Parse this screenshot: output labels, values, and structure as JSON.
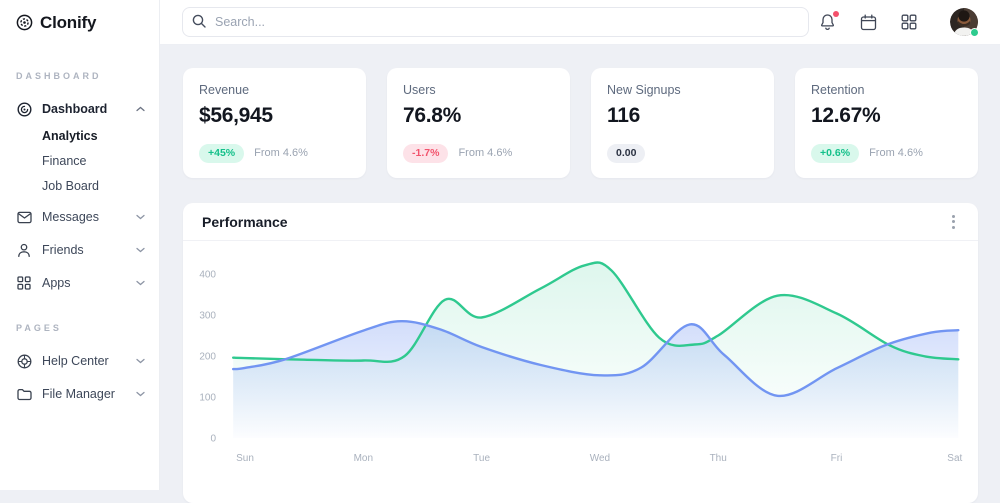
{
  "brand": {
    "name": "Clonify"
  },
  "topbar": {
    "search_placeholder": "Search...",
    "icons": [
      "bell-icon",
      "calendar-icon",
      "apps-grid-icon"
    ],
    "has_notification": true,
    "user_status": "online"
  },
  "sidebar": {
    "sections": [
      {
        "label": "DASHBOARD",
        "items": [
          {
            "label": "Dashboard",
            "icon": "dashboard-icon",
            "expanded": true,
            "children": [
              {
                "label": "Analytics",
                "active": true
              },
              {
                "label": "Finance",
                "active": false
              },
              {
                "label": "Job Board",
                "active": false
              }
            ]
          },
          {
            "label": "Messages",
            "icon": "messages-icon"
          },
          {
            "label": "Friends",
            "icon": "friends-icon"
          },
          {
            "label": "Apps",
            "icon": "apps-grid-icon"
          }
        ]
      },
      {
        "label": "PAGES",
        "items": [
          {
            "label": "Help Center",
            "icon": "help-icon"
          },
          {
            "label": "File Manager",
            "icon": "folder-icon"
          }
        ]
      }
    ]
  },
  "stats": {
    "cards": [
      {
        "title": "Revenue",
        "value": "$56,945",
        "badge": "+45%",
        "trend": "up",
        "note": "From 4.6%"
      },
      {
        "title": "Users",
        "value": "76.8%",
        "badge": "-1.7%",
        "trend": "down",
        "note": "From 4.6%"
      },
      {
        "title": "New Signups",
        "value": "116",
        "badge": "0.00",
        "trend": "neutral",
        "note": ""
      },
      {
        "title": "Retention",
        "value": "12.67%",
        "badge": "+0.6%",
        "trend": "up",
        "note": "From 4.6%"
      }
    ]
  },
  "chart_data": {
    "type": "area",
    "title": "Performance",
    "x_labels": [
      "Sun",
      "Mon",
      "Tue",
      "Wed",
      "Thu",
      "Fri",
      "Sat"
    ],
    "y_ticks": [
      0,
      100,
      200,
      300,
      400
    ],
    "ylim": [
      0,
      440
    ],
    "grid": false,
    "legend": "none",
    "series": [
      {
        "name": "green",
        "color": "#2fc98f",
        "points": [
          [
            -0.1,
            196
          ],
          [
            0,
            195
          ],
          [
            0.5,
            191
          ],
          [
            1,
            189
          ],
          [
            1.35,
            200
          ],
          [
            1.69,
            337
          ],
          [
            2,
            294
          ],
          [
            2.5,
            365
          ],
          [
            2.87,
            421
          ],
          [
            3.1,
            408
          ],
          [
            3.5,
            245
          ],
          [
            3.8,
            228
          ],
          [
            4,
            250
          ],
          [
            4.5,
            347
          ],
          [
            5,
            304
          ],
          [
            5.45,
            226
          ],
          [
            5.75,
            199
          ],
          [
            6.03,
            192
          ]
        ]
      },
      {
        "name": "blue",
        "color": "#7295f2",
        "points": [
          [
            -0.1,
            168
          ],
          [
            0,
            171
          ],
          [
            0.34,
            192
          ],
          [
            1,
            262
          ],
          [
            1.32,
            285
          ],
          [
            1.65,
            265
          ],
          [
            2,
            222
          ],
          [
            2.5,
            178
          ],
          [
            3,
            153
          ],
          [
            3.35,
            172
          ],
          [
            3.76,
            277
          ],
          [
            4.05,
            203
          ],
          [
            4.5,
            103
          ],
          [
            5,
            170
          ],
          [
            5.42,
            227
          ],
          [
            5.8,
            257
          ],
          [
            6.03,
            263
          ]
        ]
      }
    ]
  }
}
